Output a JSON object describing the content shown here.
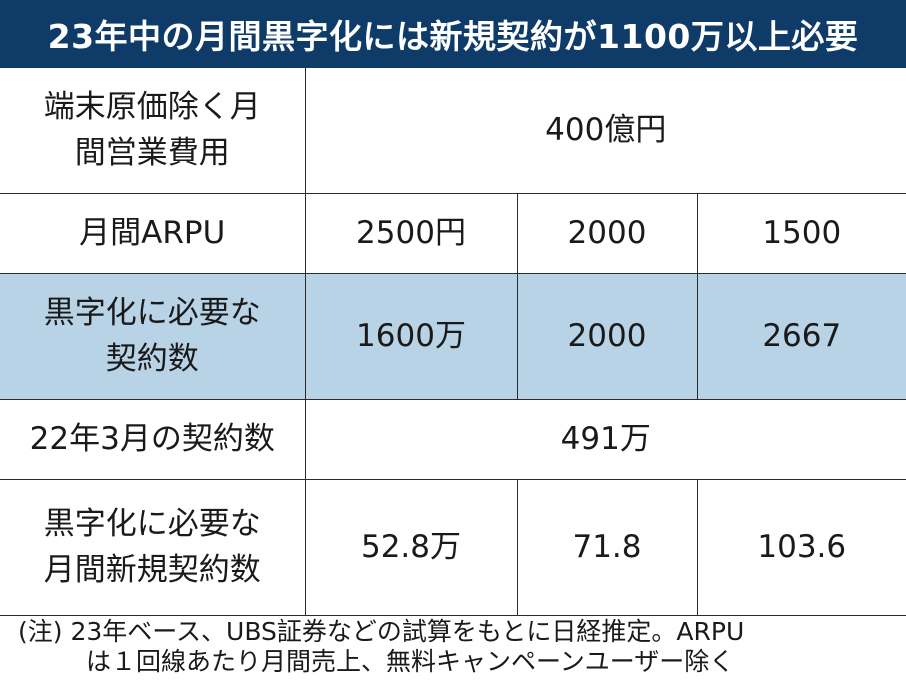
{
  "title": "23年中の月間黒字化には新規契約が1100万以上必要",
  "table": {
    "row_cost": {
      "label": "端末原価除く月間営業費用",
      "value": "400億円"
    },
    "row_arpu": {
      "label": "月間ARPU",
      "values": [
        "2500円",
        "2000",
        "1500"
      ]
    },
    "row_needed": {
      "label": "黒字化に必要な契約数",
      "values": [
        "1600万",
        "2000",
        "2667"
      ]
    },
    "row_current": {
      "label": "22年3月の契約数",
      "value": "491万"
    },
    "row_monthly": {
      "label": "黒字化に必要な月間新規契約数",
      "values": [
        "52.8万",
        "71.8",
        "103.6"
      ]
    }
  },
  "note": {
    "line1": "(注) 23年ベース、UBS証券などの試算をもとに日経推定。ARPU",
    "line2": "は１回線あたり月間売上、無料キャンペーンユーザー除く"
  },
  "colors": {
    "title_bg": "#0e3b68",
    "highlight_row": "#b9d3e6"
  }
}
